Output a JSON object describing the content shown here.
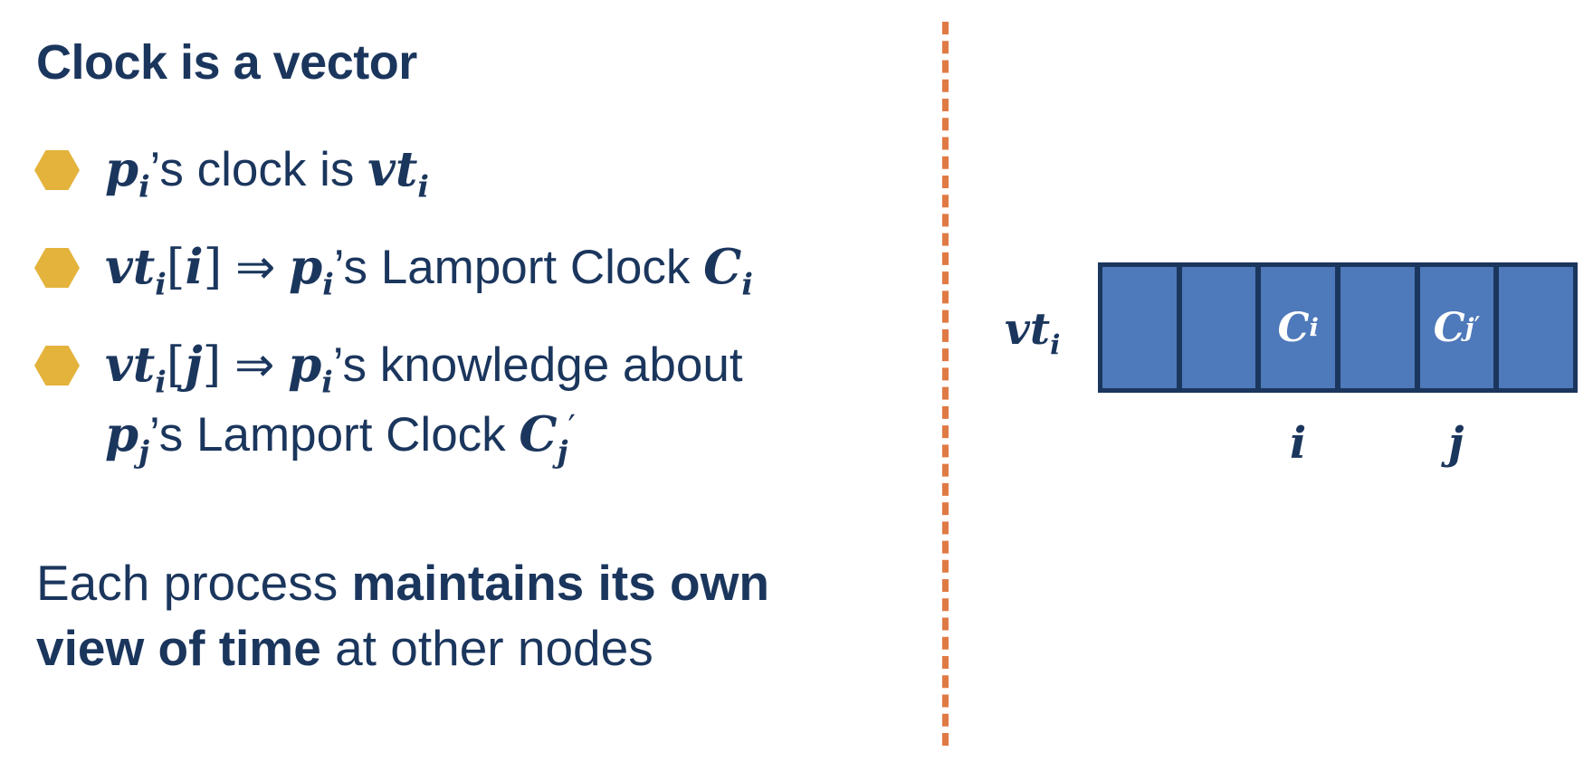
{
  "slide": {
    "heading": "Clock is a vector",
    "bullets": {
      "b1": {
        "p": "p",
        "i": "i",
        "text": "’s clock is ",
        "vt": "vt"
      },
      "b2": {
        "vt": "vt",
        "i": "i",
        "open": "[",
        "idx": "i",
        "close": "]",
        "arrow": " ⇒ ",
        "p": "p",
        "text": "’s Lamport Clock ",
        "C": "C"
      },
      "b3": {
        "vt": "vt",
        "i": "i",
        "open": "[",
        "idx": "j",
        "close": "]",
        "arrow": " ⇒ ",
        "p": "p",
        "text": "’s knowledge about",
        "p2": "p",
        "j": "j",
        "text2": "’s Lamport Clock ",
        "C": "C",
        "prime": "′"
      }
    },
    "paragraph": {
      "part1": "Each process ",
      "bold1": "maintains its own",
      "bold2": "view of time",
      "part2": " at other nodes"
    }
  },
  "vector_diagram": {
    "label": "vt",
    "label_sub": "i",
    "cells": [
      {
        "main": "",
        "sub": "",
        "prime": ""
      },
      {
        "main": "",
        "sub": "",
        "prime": ""
      },
      {
        "main": "C",
        "sub": "i",
        "prime": ""
      },
      {
        "main": "",
        "sub": "",
        "prime": ""
      },
      {
        "main": "C",
        "sub": "j",
        "prime": "′"
      },
      {
        "main": "",
        "sub": "",
        "prime": ""
      }
    ],
    "index_labels": {
      "i": "i",
      "j": "j"
    }
  },
  "colors": {
    "text": "#1b365d",
    "bullet": "#e3b33c",
    "divider": "#e07a45",
    "cell_fill": "#4e79ba",
    "cell_border": "#1b365d"
  }
}
